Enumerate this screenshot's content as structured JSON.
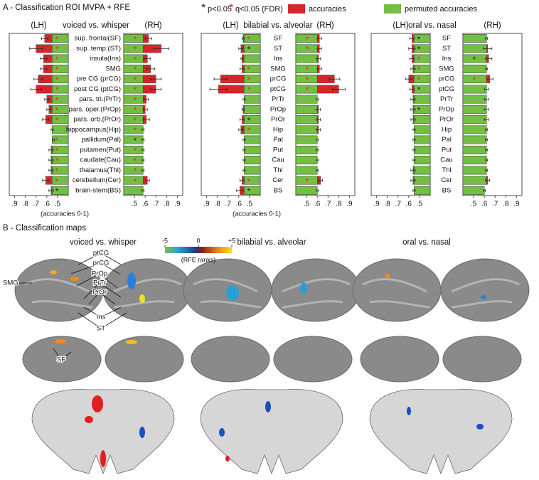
{
  "figure": {
    "panel_a_title": "A - Classification ROI MVPA + RFE",
    "panel_b_title": "B - Classification maps",
    "significance": [
      {
        "symbol": "*",
        "label": "p<0.05",
        "color": "#222222"
      },
      {
        "symbol": "*",
        "label": "q<0.05 (FDR)",
        "color": "#e8262a"
      }
    ],
    "legend": [
      {
        "name": "accuracies",
        "color": "#d7262b"
      },
      {
        "name": "permuted accuracies",
        "color": "#72bf44"
      }
    ]
  },
  "chart_data": [
    {
      "type": "mirror-bar",
      "title": "voiced vs. whisper",
      "left_label": "(LH)",
      "right_label": "(RH)",
      "x_label": "(accuracies 0-1)",
      "categories": [
        "sup. frontal(SF)",
        "sup. temp.(ST)",
        "insula(Ins)",
        "SMG",
        "pre CG (prCG)",
        "post CG (ptCG)",
        "pars. tri.(PrTr)",
        "pars. oper.(PrOp)",
        "pars. orb.(PrOr)",
        "hippocampus(Hip)",
        "pallidum(Pal)",
        "putamen(Put)",
        "caudate(Cau)",
        "thalamus(Thl)",
        "cerebellum(Cer)",
        "brain-stem(BS)"
      ],
      "xlim": [
        0.4,
        0.95
      ],
      "xticks": [
        {
          "value": 0.5,
          "label": ".5"
        },
        {
          "value": 0.6,
          "label": ".6"
        },
        {
          "value": 0.7,
          "label": ".7"
        },
        {
          "value": 0.8,
          "label": ".8"
        },
        {
          "value": 0.9,
          "label": ".9"
        }
      ],
      "lh": {
        "accuracies": [
          0.62,
          0.7,
          0.63,
          0.63,
          0.68,
          0.7,
          0.6,
          0.58,
          0.61,
          0.55,
          0.54,
          0.56,
          0.56,
          0.56,
          0.61,
          0.56
        ],
        "errors": [
          0.03,
          0.06,
          0.03,
          0.03,
          0.04,
          0.05,
          0.02,
          0.02,
          0.03,
          0.01,
          0.01,
          0.02,
          0.02,
          0.02,
          0.03,
          0.02
        ],
        "permuted": [
          0.55,
          0.55,
          0.55,
          0.55,
          0.55,
          0.55,
          0.55,
          0.55,
          0.55,
          0.55,
          0.55,
          0.55,
          0.55,
          0.55,
          0.55,
          0.55
        ],
        "markers": [
          "q",
          "q",
          "q",
          "q",
          "q",
          "q",
          "q",
          "q",
          "q",
          null,
          "q",
          "q",
          "q",
          "q",
          "q",
          "p"
        ]
      },
      "rh": {
        "accuracies": [
          0.63,
          0.75,
          0.62,
          0.65,
          0.7,
          0.7,
          0.61,
          0.6,
          0.61,
          0.58,
          0.58,
          0.58,
          0.58,
          0.58,
          0.62,
          0.58
        ],
        "errors": [
          0.03,
          0.07,
          0.03,
          0.04,
          0.05,
          0.05,
          0.02,
          0.02,
          0.03,
          0.01,
          0.01,
          0.01,
          0.01,
          0.01,
          0.02,
          0.01
        ],
        "permuted": [
          0.58,
          0.58,
          0.58,
          0.58,
          0.58,
          0.58,
          0.58,
          0.58,
          0.58,
          0.58,
          0.58,
          0.58,
          0.58,
          0.58,
          0.58,
          0.58
        ],
        "markers": [
          "q",
          "q",
          "q",
          "q",
          "q",
          "q",
          "q",
          "q",
          "q",
          "q",
          "p",
          "q",
          "q",
          "q",
          "q",
          null
        ]
      }
    },
    {
      "type": "mirror-bar",
      "title": "bilabial vs. alveolar",
      "left_label": "(LH)",
      "right_label": "(RH)",
      "x_label": "(accuracies 0-1)",
      "categories": [
        "SF",
        "ST",
        "Ins",
        "SMG",
        "prCG",
        "ptCG",
        "PrTr",
        "PrOp",
        "PrOr",
        "Hip",
        "Pal",
        "Put",
        "Cau",
        "Thl",
        "Cer",
        "BS"
      ],
      "xlim": [
        0.4,
        0.95
      ],
      "xticks": [
        {
          "value": 0.5,
          "label": ".5"
        },
        {
          "value": 0.6,
          "label": ".6"
        },
        {
          "value": 0.7,
          "label": ".7"
        },
        {
          "value": 0.8,
          "label": ".8"
        },
        {
          "value": 0.9,
          "label": ".9"
        }
      ],
      "lh": {
        "accuracies": [
          0.56,
          0.58,
          0.57,
          0.57,
          0.77,
          0.79,
          0.55,
          0.56,
          0.57,
          0.58,
          0.55,
          0.55,
          0.55,
          0.55,
          0.57,
          0.59
        ],
        "errors": [
          0.01,
          0.02,
          0.01,
          0.02,
          0.06,
          0.08,
          0.01,
          0.01,
          0.02,
          0.02,
          0.01,
          0.01,
          0.01,
          0.01,
          0.02,
          0.03
        ],
        "permuted": [
          0.55,
          0.55,
          0.55,
          0.55,
          0.55,
          0.55,
          0.55,
          0.55,
          0.55,
          0.55,
          0.55,
          0.55,
          0.55,
          0.55,
          0.55,
          0.55
        ],
        "markers": [
          "q",
          "p",
          null,
          "q",
          "q",
          "q",
          null,
          null,
          "p",
          "q",
          null,
          null,
          null,
          null,
          "q",
          "p"
        ]
      },
      "rh": {
        "accuracies": [
          0.62,
          0.62,
          0.61,
          0.62,
          0.76,
          0.8,
          0.6,
          0.61,
          0.61,
          0.61,
          0.6,
          0.6,
          0.6,
          0.6,
          0.63,
          0.6
        ],
        "errors": [
          0.02,
          0.02,
          0.02,
          0.02,
          0.05,
          0.06,
          0.01,
          0.02,
          0.02,
          0.02,
          0.01,
          0.01,
          0.01,
          0.01,
          0.02,
          0.01
        ],
        "permuted": [
          0.6,
          0.6,
          0.6,
          0.6,
          0.6,
          0.6,
          0.6,
          0.6,
          0.6,
          0.6,
          0.6,
          0.6,
          0.6,
          0.6,
          0.6,
          0.6
        ],
        "markers": [
          "q",
          "q",
          null,
          "q",
          "q",
          "q",
          null,
          null,
          null,
          null,
          null,
          null,
          null,
          null,
          "q",
          null
        ]
      }
    },
    {
      "type": "mirror-bar",
      "title": "oral vs. nasal",
      "left_label": "(LH)",
      "right_label": "(RH)",
      "categories": [
        "SF",
        "ST",
        "Ins",
        "SMG",
        "prCG",
        "ptCG",
        "PrTr",
        "PrOp",
        "PrOr",
        "Hip",
        "Pal",
        "Put",
        "Cau",
        "Thl",
        "Cer",
        "BS"
      ],
      "xlim": [
        0.4,
        0.95
      ],
      "xticks": [
        {
          "value": 0.5,
          "label": ".5"
        },
        {
          "value": 0.6,
          "label": ".6"
        },
        {
          "value": 0.7,
          "label": ".7"
        },
        {
          "value": 0.8,
          "label": ".8"
        },
        {
          "value": 0.9,
          "label": ".9"
        }
      ],
      "lh": {
        "accuracies": [
          0.57,
          0.57,
          0.57,
          0.56,
          0.6,
          0.57,
          0.56,
          0.56,
          0.56,
          0.55,
          0.55,
          0.55,
          0.55,
          0.56,
          0.56,
          0.55
        ],
        "errors": [
          0.02,
          0.03,
          0.02,
          0.02,
          0.03,
          0.02,
          0.02,
          0.02,
          0.02,
          0.01,
          0.01,
          0.01,
          0.01,
          0.02,
          0.02,
          0.01
        ],
        "permuted": [
          0.55,
          0.55,
          0.55,
          0.55,
          0.55,
          0.55,
          0.55,
          0.55,
          0.55,
          0.55,
          0.55,
          0.55,
          0.55,
          0.55,
          0.55,
          0.55
        ],
        "markers": [
          "p",
          "p",
          "q",
          "q",
          "q",
          "p",
          null,
          "p",
          null,
          null,
          null,
          null,
          null,
          null,
          null,
          null
        ]
      },
      "rh": {
        "accuracies": [
          0.62,
          0.63,
          0.64,
          0.62,
          0.65,
          0.62,
          0.62,
          0.62,
          0.62,
          0.62,
          0.62,
          0.62,
          0.62,
          0.62,
          0.63,
          0.6
        ],
        "errors": [
          0.01,
          0.04,
          0.03,
          0.01,
          0.03,
          0.02,
          0.02,
          0.02,
          0.02,
          0.01,
          0.01,
          0.01,
          0.01,
          0.01,
          0.02,
          0.01
        ],
        "permuted": [
          0.62,
          0.62,
          0.62,
          0.62,
          0.62,
          0.62,
          0.62,
          0.62,
          0.62,
          0.62,
          0.62,
          0.62,
          0.62,
          0.62,
          0.62,
          0.6
        ],
        "markers": [
          null,
          null,
          "p",
          null,
          "q",
          null,
          null,
          null,
          null,
          null,
          null,
          null,
          null,
          null,
          null,
          null
        ]
      }
    }
  ],
  "maps": {
    "titles": [
      "voiced vs. whisper",
      "bilabial vs. alveolar",
      "oral vs. nasal"
    ],
    "colorbar": {
      "title": "(RFE ranks)",
      "lim": [
        -5,
        5
      ],
      "ticks": [
        -5,
        0,
        {
          "value": 5,
          "label": "+5"
        }
      ]
    },
    "region_labels": [
      "SMG",
      "ptCG",
      "prCG",
      "PrOp",
      "PrTr",
      "PrOr",
      "Ins",
      "ST",
      "SF"
    ]
  }
}
